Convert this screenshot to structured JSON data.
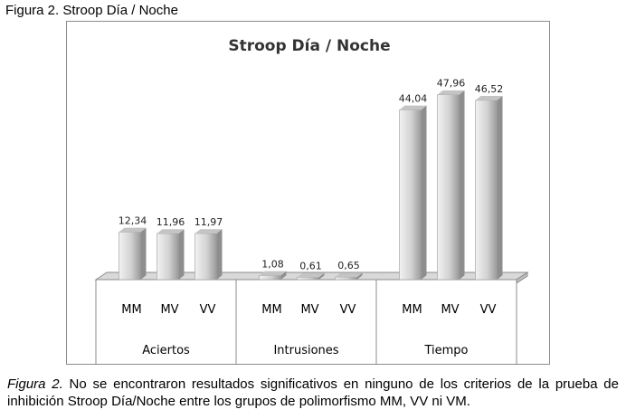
{
  "figure_label": "Figura 2. Stroop Día / Noche",
  "caption": {
    "lead": "Figura 2.",
    "text": " No se encontraron resultados significativos en ninguno de los criterios de la prueba de inhibición Stroop Día/Noche entre los grupos de polimorfismo MM, VV ni VM."
  },
  "colors": {
    "bar_light": "#e8e8e8",
    "bar_mid": "#c4c4c4",
    "bar_dark": "#8e8e8e",
    "frame": "#8c8c8c",
    "floor": "#bdbdbd"
  },
  "chart_data": {
    "type": "bar",
    "title": "Stroop Día / Noche",
    "groups": [
      {
        "name": "Aciertos",
        "categories": [
          "MM",
          "MV",
          "VV"
        ],
        "values": [
          12.34,
          11.96,
          11.97
        ],
        "labels": [
          "12,34",
          "11,96",
          "11,97"
        ]
      },
      {
        "name": "Intrusiones",
        "categories": [
          "MM",
          "MV",
          "VV"
        ],
        "values": [
          1.08,
          0.61,
          0.65
        ],
        "labels": [
          "1,08",
          "0,61",
          "0,65"
        ]
      },
      {
        "name": "Tiempo",
        "categories": [
          "MM",
          "MV",
          "VV"
        ],
        "values": [
          44.04,
          47.96,
          46.52
        ],
        "labels": [
          "44,04",
          "47,96",
          "46,52"
        ]
      }
    ],
    "ylim": [
      0,
      50
    ],
    "grid": false,
    "legend": "none",
    "style": "3d-cylinder"
  }
}
